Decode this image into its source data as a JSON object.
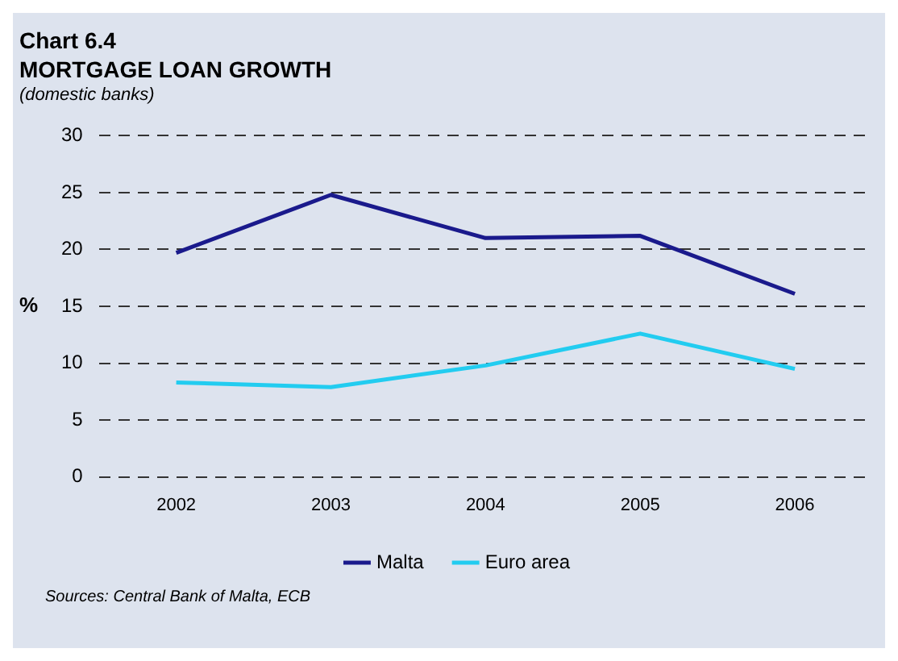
{
  "chart_data": {
    "type": "line",
    "title": "Chart 6.4",
    "subtitle": "MORTGAGE LOAN GROWTH",
    "annotations": [
      "(domestic banks)",
      "Sources: Central Bank of Malta, ECB"
    ],
    "ylabel": "%",
    "categories": [
      "2002",
      "2003",
      "2004",
      "2005",
      "2006"
    ],
    "series": [
      {
        "name": "Malta",
        "color": "#1a1a8c",
        "values": [
          19.7,
          24.8,
          21.0,
          21.2,
          16.1
        ]
      },
      {
        "name": "Euro area",
        "color": "#22ccf0",
        "values": [
          8.3,
          7.9,
          9.8,
          12.6,
          9.5
        ]
      }
    ],
    "ylim": [
      0,
      30
    ],
    "yticks": [
      0,
      5,
      10,
      15,
      20,
      25,
      30
    ],
    "grid": "y",
    "legend": "bottom",
    "marker": "none",
    "line_style": "solid"
  }
}
